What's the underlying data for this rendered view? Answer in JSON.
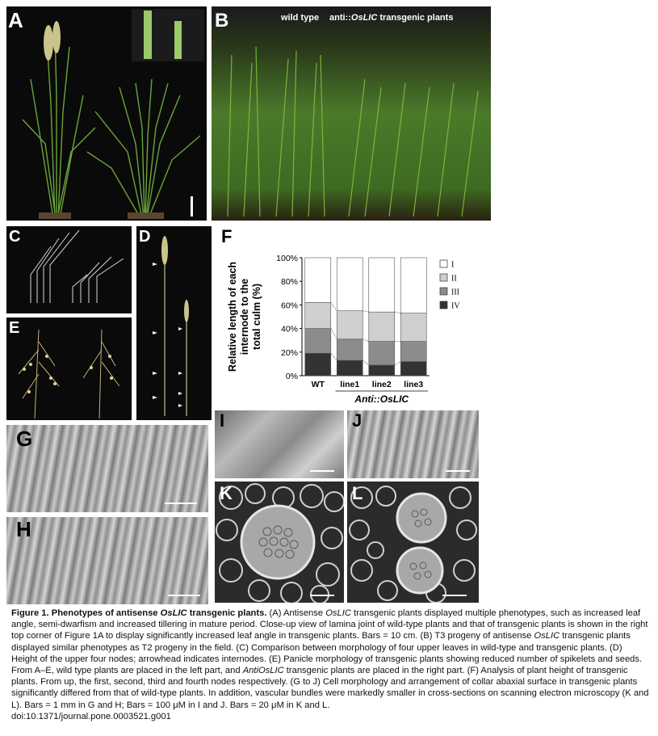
{
  "panels": {
    "A": "A",
    "B": "B",
    "C": "C",
    "D": "D",
    "E": "E",
    "F": "F",
    "G": "G",
    "H": "H",
    "I": "I",
    "J": "J",
    "K": "K",
    "L": "L"
  },
  "panel_b": {
    "label_wild": "wild type",
    "label_trans_prefix": "anti::",
    "label_trans_gene": "OsLIC",
    "label_trans_suffix": " transgenic plants"
  },
  "chart_data": {
    "type": "bar",
    "stacked": true,
    "categories": [
      "WT",
      "line1",
      "line2",
      "line3"
    ],
    "group_label": "Anti::OsLIC",
    "ylabel": "Relative length of each internode to the total culm (%)",
    "ylim": [
      0,
      100
    ],
    "yticks": [
      "0%",
      "20%",
      "40%",
      "60%",
      "80%",
      "100%"
    ],
    "series": [
      {
        "name": "IV",
        "color": "#333333",
        "values": [
          19,
          13,
          9,
          12
        ]
      },
      {
        "name": "III",
        "color": "#8c8c8c",
        "values": [
          21,
          18,
          20,
          17
        ]
      },
      {
        "name": "II",
        "color": "#cfcfcf",
        "values": [
          22,
          24,
          25,
          24
        ]
      },
      {
        "name": "I",
        "color": "#ffffff",
        "values": [
          38,
          45,
          46,
          47
        ]
      }
    ],
    "legend_placement": "right",
    "connector_lines": true
  },
  "caption": {
    "fig": "Figure 1. Phenotypes of antisense ",
    "fig_gene": "OsLIC",
    "fig_end": " transgenic plants.",
    "p1": " (A) Antisense ",
    "p1_gene": "OsLIC",
    "p2": " transgenic plants displayed multiple phenotypes, such as increased leaf angle, semi-dwarfism and increased tillering in mature period. Close-up view of lamina joint of wild-type plants and that of transgenic plants is shown in the right top corner of Figure 1A to display significantly increased leaf angle in transgenic plants. Bars = 10 cm. (B) T3 progeny of antisense ",
    "p2_gene": "OsLIC",
    "p3": " transgenic plants displayed similar phenotypes as T2 progeny in the field. (C) Comparison between morphology of four upper leaves in wild-type and transgenic plants. (D) Height of the upper four nodes; arrowhead indicates internodes. (E) Panicle morphology of transgenic plants showing reduced number of spikelets and seeds. From A–E, wild type plants are placed in the left part, and ",
    "p3_gene": "AntiOsLIC",
    "p4": " transgenic plants are placed in the right part. (F) Analysis of plant height of transgenic plants. From up, the first, second, third and fourth nodes respectively. (G to J) Cell morphology and arrangement of collar abaxial surface in transgenic plants significantly differed from that of wild-type plants. In addition, vascular bundles were markedly smaller in cross-sections on scanning electron microscopy (K and L). Bars = 1 mm in G and H; Bars = 100 μM in I and J. Bars = 20 μM in K and L.",
    "doi": "doi:10.1371/journal.pone.0003521.g001"
  }
}
